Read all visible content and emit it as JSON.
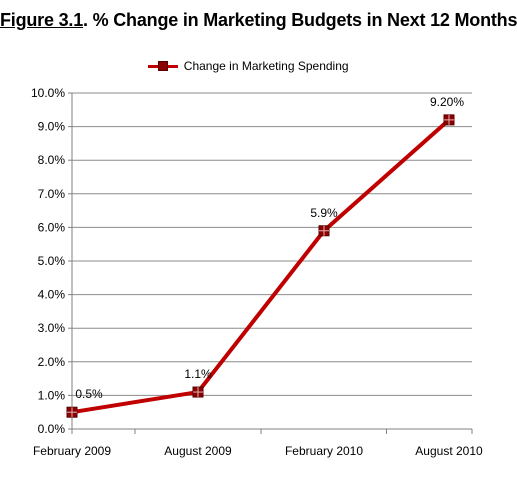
{
  "title_prefix": "Figure 3.1",
  "title_rest": ". % Change in Marketing Budgets in Next 12 Months",
  "chart_data": {
    "type": "line",
    "title": "Figure 3.1. % Change in Marketing Budgets in Next 12 Months",
    "categories": [
      "February 2009",
      "August 2009",
      "February 2010",
      "August 2010"
    ],
    "series": [
      {
        "name": "Change in Marketing Spending",
        "values": [
          0.5,
          1.1,
          5.9,
          9.2
        ],
        "labels": [
          "0.5%",
          "1.1%",
          "5.9%",
          "9.20%"
        ],
        "color": "#c00000",
        "marker_color": "#8b0000"
      }
    ],
    "ylim": [
      0,
      10
    ],
    "yticks": [
      0,
      1,
      2,
      3,
      4,
      5,
      6,
      7,
      8,
      9,
      10
    ],
    "ytick_labels": [
      "0.0%",
      "1.0%",
      "2.0%",
      "3.0%",
      "4.0%",
      "5.0%",
      "6.0%",
      "7.0%",
      "8.0%",
      "9.0%",
      "10.0%"
    ],
    "grid": true,
    "legend": "top",
    "xlabel": "",
    "ylabel": ""
  }
}
